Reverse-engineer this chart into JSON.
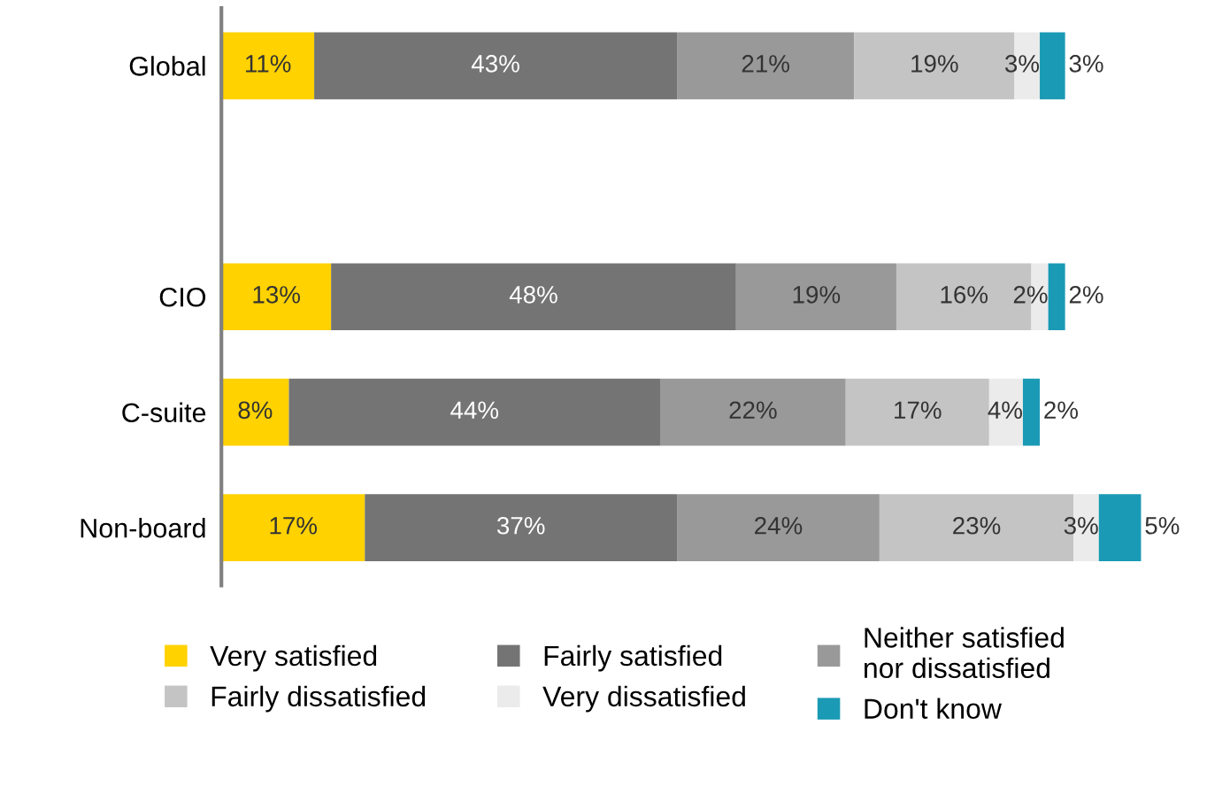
{
  "chart_data": {
    "type": "bar",
    "orientation": "horizontal",
    "stacked": true,
    "tick_labels": "y",
    "legend": "bottom",
    "grid": false,
    "categories": [
      "Global",
      null,
      "CIO",
      "C-suite",
      "Non-board"
    ],
    "series": [
      {
        "name": "Very satisfied",
        "color": "#ffd200",
        "values": [
          11,
          null,
          13,
          8,
          17
        ],
        "value_labels": [
          "11%",
          null,
          "13%",
          "8%",
          "17%"
        ]
      },
      {
        "name": "Fairly satisfied",
        "color": "#747474",
        "values": [
          43,
          null,
          48,
          44,
          37
        ],
        "value_labels": [
          "43%",
          null,
          "48%",
          "44%",
          "37%"
        ]
      },
      {
        "name": "Neither satisfied\nnor dissatisfied",
        "color": "#999999",
        "values": [
          21,
          null,
          19,
          22,
          24
        ],
        "value_labels": [
          "21%",
          null,
          "19%",
          "22%",
          "24%"
        ]
      },
      {
        "name": "Fairly dissatisfied",
        "color": "#c4c4c4",
        "values": [
          19,
          null,
          16,
          17,
          23
        ],
        "value_labels": [
          "19%",
          null,
          "16%",
          "17%",
          "23%"
        ]
      },
      {
        "name": "Very dissatisfied",
        "color": "#ebebeb",
        "values": [
          3,
          null,
          2,
          4,
          3
        ],
        "value_labels": [
          "3%",
          null,
          "2%",
          "4%",
          "3%"
        ]
      },
      {
        "name": "Don't know",
        "color": "#1a9ab4",
        "values": [
          3,
          null,
          2,
          2,
          5
        ],
        "value_labels": [
          "3%",
          null,
          "2%",
          "2%",
          "5%"
        ]
      }
    ]
  }
}
